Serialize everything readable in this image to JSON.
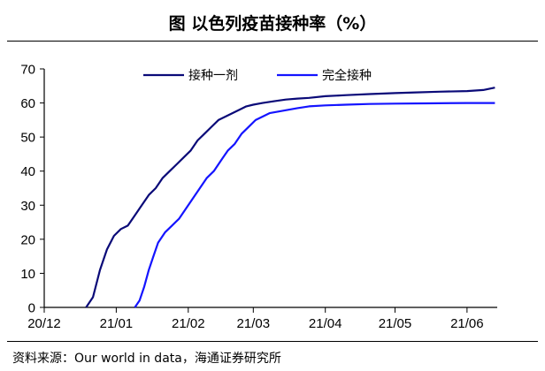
{
  "title": "图  以色列疫苗接种率（%）",
  "source": "资料来源：Our world in data，海通证券研究所",
  "colors": {
    "first_dose": "#0a0a78",
    "full": "#1414ff",
    "axis": "#000000"
  },
  "chart_data": {
    "type": "line",
    "ylim": [
      0,
      70
    ],
    "yticks": [
      0,
      10,
      20,
      30,
      40,
      50,
      60,
      70
    ],
    "x_tick_labels": [
      "20/12",
      "21/01",
      "21/02",
      "21/03",
      "21/04",
      "21/05",
      "21/06"
    ],
    "x_tick_dates": [
      "2020-12-01",
      "2021-01-01",
      "2021-02-01",
      "2021-03-01",
      "2021-04-01",
      "2021-05-01",
      "2021-06-01"
    ],
    "xlim": [
      "2020-12-01",
      "2021-06-14"
    ],
    "legend_position": "top",
    "series": [
      {
        "name": "接种一剂",
        "x": [
          "2020-12-19",
          "2020-12-22",
          "2020-12-25",
          "2020-12-28",
          "2020-12-31",
          "2021-01-03",
          "2021-01-06",
          "2021-01-09",
          "2021-01-12",
          "2021-01-15",
          "2021-01-18",
          "2021-01-21",
          "2021-01-24",
          "2021-01-27",
          "2021-01-30",
          "2021-02-02",
          "2021-02-05",
          "2021-02-08",
          "2021-02-11",
          "2021-02-14",
          "2021-02-17",
          "2021-02-20",
          "2021-02-23",
          "2021-02-26",
          "2021-03-01",
          "2021-03-05",
          "2021-03-10",
          "2021-03-15",
          "2021-03-20",
          "2021-03-25",
          "2021-04-01",
          "2021-04-10",
          "2021-04-20",
          "2021-05-01",
          "2021-05-10",
          "2021-05-20",
          "2021-06-01",
          "2021-06-08",
          "2021-06-13"
        ],
        "values": [
          0,
          3,
          11,
          17,
          21,
          23,
          24,
          27,
          30,
          33,
          35,
          38,
          40,
          42,
          44,
          46,
          49,
          51,
          53,
          55,
          56,
          57,
          58,
          59,
          59.5,
          60,
          60.5,
          61,
          61.3,
          61.5,
          62,
          62.3,
          62.6,
          62.9,
          63.1,
          63.3,
          63.5,
          63.8,
          64.5
        ]
      },
      {
        "name": "完全接种",
        "x": [
          "2021-01-09",
          "2021-01-11",
          "2021-01-13",
          "2021-01-15",
          "2021-01-17",
          "2021-01-19",
          "2021-01-22",
          "2021-01-25",
          "2021-01-28",
          "2021-01-31",
          "2021-02-03",
          "2021-02-06",
          "2021-02-09",
          "2021-02-12",
          "2021-02-15",
          "2021-02-18",
          "2021-02-21",
          "2021-02-24",
          "2021-02-27",
          "2021-03-02",
          "2021-03-05",
          "2021-03-08",
          "2021-03-12",
          "2021-03-16",
          "2021-03-20",
          "2021-03-25",
          "2021-04-01",
          "2021-04-10",
          "2021-04-20",
          "2021-05-01",
          "2021-05-15",
          "2021-06-01",
          "2021-06-13"
        ],
        "values": [
          0,
          2,
          6,
          11,
          15,
          19,
          22,
          24,
          26,
          29,
          32,
          35,
          38,
          40,
          43,
          46,
          48,
          51,
          53,
          55,
          56,
          57,
          57.5,
          58,
          58.5,
          59,
          59.3,
          59.5,
          59.7,
          59.8,
          59.9,
          60,
          60
        ]
      }
    ]
  }
}
